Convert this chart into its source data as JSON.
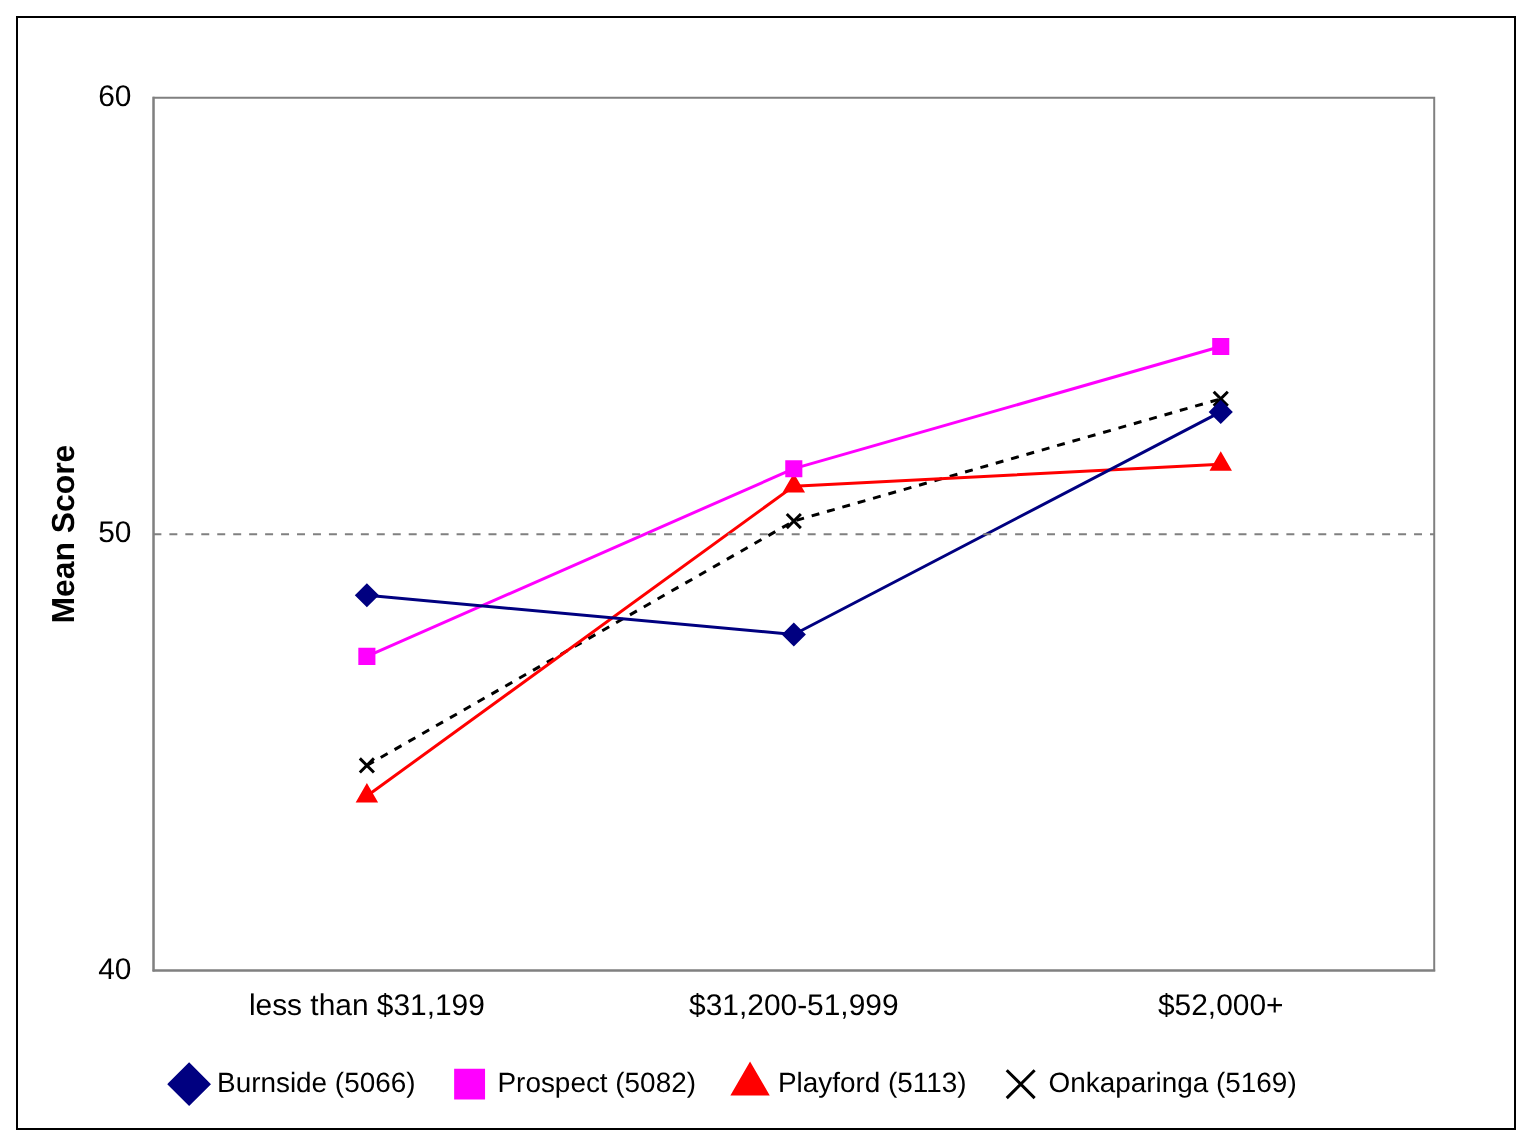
{
  "chart_data": {
    "type": "line",
    "ylabel": "Mean Score",
    "categories": [
      "less than $31,199",
      "$31,200-51,999",
      "$52,000+"
    ],
    "series": [
      {
        "name": "Burnside (5066)",
        "color": "#000080",
        "values": [
          48.6,
          47.7,
          52.8
        ],
        "marker": "diamond",
        "line_style": "solid"
      },
      {
        "name": "Prospect (5082)",
        "color": "#ff00ff",
        "values": [
          47.2,
          51.5,
          54.3
        ],
        "marker": "square",
        "line_style": "solid"
      },
      {
        "name": "Playford (5113)",
        "color": "#ff0000",
        "values": [
          44.0,
          51.1,
          51.6
        ],
        "marker": "triangle",
        "line_style": "solid"
      },
      {
        "name": "Onkaparinga (5169)",
        "color": "#000000",
        "values": [
          44.7,
          50.3,
          53.1
        ],
        "marker": "cross",
        "line_style": "dashed"
      }
    ],
    "ylim": [
      40,
      60
    ],
    "yticks": [
      40,
      50,
      60
    ],
    "grid": false,
    "legend": "bottom",
    "ref_lines": [
      {
        "axis": "y",
        "value": 50,
        "color": "#808080",
        "line_style": "dashed"
      }
    ]
  }
}
